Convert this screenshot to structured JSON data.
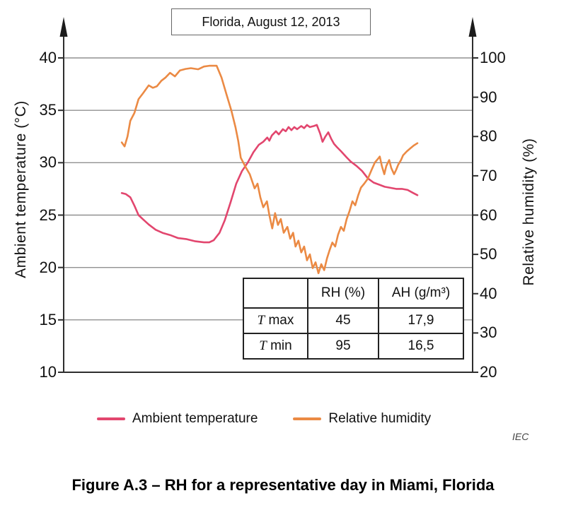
{
  "figure": {
    "title_box": "Florida, August 12, 2013",
    "caption": "Figure A.3 – RH for a representative day in Miami, Florida",
    "credit": "IEC"
  },
  "chart_data": {
    "type": "line",
    "title": "Florida, August 12, 2013",
    "grid": true,
    "x_axis": {
      "label": "",
      "note": "time axis unlabeled; x stored as fraction 0–1 of plot width"
    },
    "left_axis": {
      "label": "Ambient temperature (°C)",
      "min": 10,
      "max": 40,
      "ticks": [
        40,
        35,
        30,
        25,
        20,
        15,
        10
      ]
    },
    "right_axis": {
      "label": "Relative humidity (%)",
      "min": 20,
      "max": 100,
      "ticks": [
        100,
        90,
        80,
        70,
        60,
        50,
        40,
        30,
        20
      ]
    },
    "series": [
      {
        "name": "Ambient temperature",
        "axis": "left",
        "color": "#e2466e",
        "points": [
          [
            0.142,
            27.1
          ],
          [
            0.152,
            27.0
          ],
          [
            0.163,
            26.7
          ],
          [
            0.173,
            25.9
          ],
          [
            0.183,
            25.0
          ],
          [
            0.194,
            24.6
          ],
          [
            0.208,
            24.1
          ],
          [
            0.225,
            23.6
          ],
          [
            0.242,
            23.3
          ],
          [
            0.26,
            23.1
          ],
          [
            0.28,
            22.8
          ],
          [
            0.301,
            22.7
          ],
          [
            0.322,
            22.5
          ],
          [
            0.343,
            22.4
          ],
          [
            0.356,
            22.4
          ],
          [
            0.367,
            22.6
          ],
          [
            0.381,
            23.3
          ],
          [
            0.394,
            24.5
          ],
          [
            0.408,
            26.2
          ],
          [
            0.422,
            28.0
          ],
          [
            0.436,
            29.2
          ],
          [
            0.45,
            30.0
          ],
          [
            0.464,
            31.0
          ],
          [
            0.477,
            31.7
          ],
          [
            0.488,
            32.0
          ],
          [
            0.498,
            32.4
          ],
          [
            0.503,
            32.1
          ],
          [
            0.509,
            32.6
          ],
          [
            0.519,
            33.0
          ],
          [
            0.526,
            32.7
          ],
          [
            0.536,
            33.2
          ],
          [
            0.543,
            33.0
          ],
          [
            0.55,
            33.4
          ],
          [
            0.557,
            33.1
          ],
          [
            0.564,
            33.4
          ],
          [
            0.571,
            33.2
          ],
          [
            0.581,
            33.5
          ],
          [
            0.588,
            33.3
          ],
          [
            0.595,
            33.6
          ],
          [
            0.602,
            33.4
          ],
          [
            0.612,
            33.5
          ],
          [
            0.619,
            33.6
          ],
          [
            0.627,
            32.8
          ],
          [
            0.633,
            32.0
          ],
          [
            0.64,
            32.5
          ],
          [
            0.647,
            32.9
          ],
          [
            0.654,
            32.3
          ],
          [
            0.661,
            31.8
          ],
          [
            0.668,
            31.5
          ],
          [
            0.678,
            31.1
          ],
          [
            0.692,
            30.5
          ],
          [
            0.702,
            30.1
          ],
          [
            0.716,
            29.7
          ],
          [
            0.73,
            29.2
          ],
          [
            0.744,
            28.5
          ],
          [
            0.758,
            28.1
          ],
          [
            0.772,
            27.9
          ],
          [
            0.785,
            27.7
          ],
          [
            0.799,
            27.6
          ],
          [
            0.813,
            27.5
          ],
          [
            0.827,
            27.5
          ],
          [
            0.841,
            27.4
          ],
          [
            0.855,
            27.1
          ],
          [
            0.865,
            26.9
          ]
        ]
      },
      {
        "name": "Relative humidity",
        "axis": "right",
        "color": "#eb8a44",
        "points": [
          [
            0.142,
            78.5
          ],
          [
            0.149,
            77.5
          ],
          [
            0.156,
            80.0
          ],
          [
            0.163,
            84.0
          ],
          [
            0.173,
            86.0
          ],
          [
            0.183,
            89.5
          ],
          [
            0.194,
            91.0
          ],
          [
            0.208,
            93.0
          ],
          [
            0.218,
            92.4
          ],
          [
            0.228,
            92.8
          ],
          [
            0.239,
            94.2
          ],
          [
            0.249,
            95.0
          ],
          [
            0.26,
            96.2
          ],
          [
            0.272,
            95.3
          ],
          [
            0.284,
            96.8
          ],
          [
            0.298,
            97.2
          ],
          [
            0.311,
            97.4
          ],
          [
            0.329,
            97.1
          ],
          [
            0.343,
            97.8
          ],
          [
            0.356,
            98.0
          ],
          [
            0.374,
            98.0
          ],
          [
            0.386,
            95.0
          ],
          [
            0.398,
            90.8
          ],
          [
            0.41,
            86.6
          ],
          [
            0.42,
            82.4
          ],
          [
            0.427,
            78.8
          ],
          [
            0.433,
            74.6
          ],
          [
            0.445,
            72.2
          ],
          [
            0.455,
            70.4
          ],
          [
            0.467,
            66.8
          ],
          [
            0.474,
            68.0
          ],
          [
            0.481,
            64.5
          ],
          [
            0.488,
            62.0
          ],
          [
            0.497,
            63.5
          ],
          [
            0.503,
            60.0
          ],
          [
            0.51,
            56.6
          ],
          [
            0.517,
            60.5
          ],
          [
            0.524,
            57.5
          ],
          [
            0.531,
            59.0
          ],
          [
            0.538,
            55.5
          ],
          [
            0.547,
            57.0
          ],
          [
            0.554,
            54.0
          ],
          [
            0.561,
            55.5
          ],
          [
            0.567,
            52.0
          ],
          [
            0.574,
            53.5
          ],
          [
            0.581,
            50.5
          ],
          [
            0.588,
            52.0
          ],
          [
            0.595,
            48.5
          ],
          [
            0.602,
            50.0
          ],
          [
            0.609,
            46.5
          ],
          [
            0.616,
            48.0
          ],
          [
            0.623,
            45.2
          ],
          [
            0.63,
            47.5
          ],
          [
            0.637,
            46.0
          ],
          [
            0.644,
            49.0
          ],
          [
            0.65,
            51.0
          ],
          [
            0.657,
            53.0
          ],
          [
            0.664,
            52.0
          ],
          [
            0.671,
            55.0
          ],
          [
            0.678,
            57.0
          ],
          [
            0.685,
            56.0
          ],
          [
            0.692,
            59.0
          ],
          [
            0.699,
            61.0
          ],
          [
            0.706,
            63.5
          ],
          [
            0.713,
            62.5
          ],
          [
            0.72,
            65.0
          ],
          [
            0.727,
            67.0
          ],
          [
            0.735,
            68.0
          ],
          [
            0.744,
            69.3
          ],
          [
            0.753,
            71.5
          ],
          [
            0.761,
            73.4
          ],
          [
            0.77,
            74.5
          ],
          [
            0.773,
            74.9
          ],
          [
            0.778,
            72.5
          ],
          [
            0.784,
            70.4
          ],
          [
            0.789,
            72.5
          ],
          [
            0.796,
            74.0
          ],
          [
            0.801,
            72.0
          ],
          [
            0.808,
            70.4
          ],
          [
            0.813,
            71.5
          ],
          [
            0.818,
            72.8
          ],
          [
            0.825,
            74.0
          ],
          [
            0.83,
            75.2
          ],
          [
            0.839,
            76.2
          ],
          [
            0.848,
            77.0
          ],
          [
            0.856,
            77.7
          ],
          [
            0.865,
            78.3
          ]
        ]
      }
    ],
    "inset_table": {
      "headers": [
        "",
        "RH (%)",
        "AH (g/m³)"
      ],
      "rows": [
        {
          "t": "T",
          "label": "max",
          "rh": "45",
          "ah": "17,9"
        },
        {
          "t": "T",
          "label": "min",
          "rh": "95",
          "ah": "16,5"
        }
      ]
    },
    "legend": [
      {
        "label": "Ambient temperature",
        "color": "#e2466e"
      },
      {
        "label": "Relative humidity",
        "color": "#eb8a44"
      }
    ]
  }
}
